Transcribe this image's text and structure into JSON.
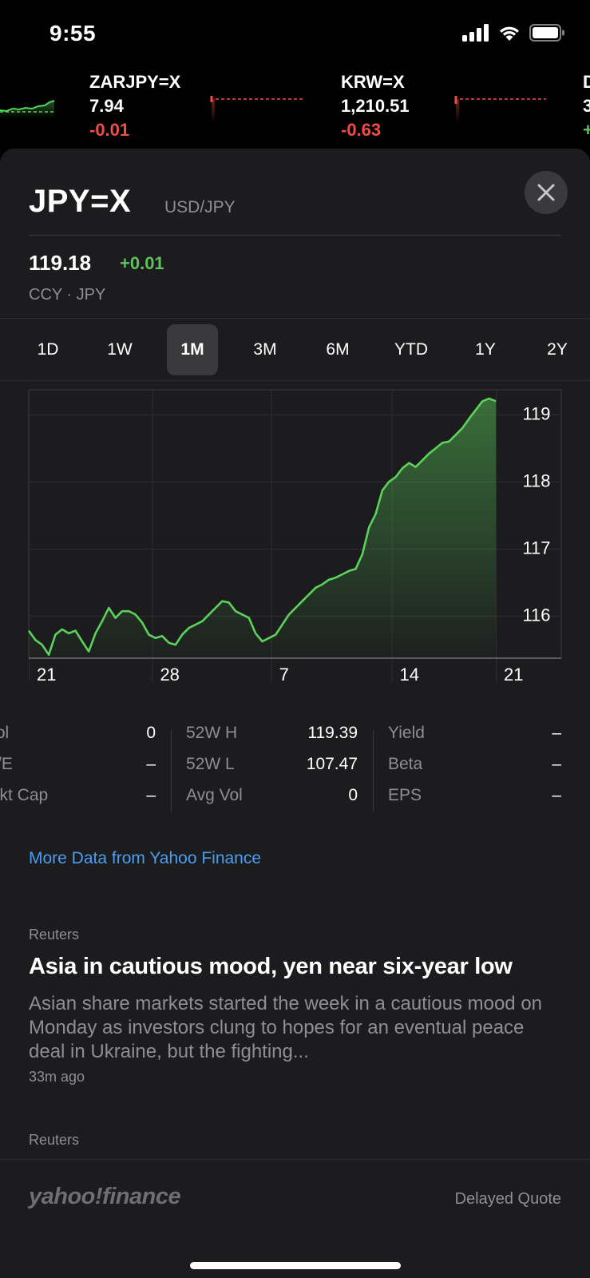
{
  "status_bar": {
    "time": "9:55"
  },
  "ticker": [
    {
      "symbol": "ZARJPY=X",
      "price": "7.94",
      "change": "-0.01"
    },
    {
      "symbol": "KRW=X",
      "price": "1,210.51",
      "change": "-0.63"
    }
  ],
  "header": {
    "symbol": "JPY=X",
    "pair": "USD/JPY"
  },
  "quote": {
    "price": "119.18",
    "change": "+0.01",
    "subline": "CCY · JPY"
  },
  "ranges": [
    "1D",
    "1W",
    "1M",
    "3M",
    "6M",
    "YTD",
    "1Y",
    "2Y"
  ],
  "active_range": "1M",
  "chart_data": {
    "type": "area",
    "x_tick_labels": [
      "21",
      "28",
      "7",
      "14",
      "21"
    ],
    "y_tick_labels": [
      "119",
      "118",
      "117",
      "116"
    ],
    "ylim": [
      115.35,
      119.35
    ],
    "values": [
      115.76,
      115.62,
      115.55,
      115.4,
      115.7,
      115.78,
      115.72,
      115.76,
      115.6,
      115.45,
      115.72,
      115.9,
      116.1,
      115.95,
      116.05,
      116.05,
      116.0,
      115.88,
      115.7,
      115.65,
      115.68,
      115.58,
      115.55,
      115.7,
      115.8,
      115.85,
      115.9,
      116.0,
      116.1,
      116.2,
      116.18,
      116.05,
      116.0,
      115.95,
      115.72,
      115.6,
      115.65,
      115.7,
      115.85,
      116.0,
      116.1,
      116.2,
      116.3,
      116.4,
      116.45,
      116.52,
      116.55,
      116.6,
      116.65,
      116.68,
      116.9,
      117.3,
      117.5,
      117.85,
      117.98,
      118.05,
      118.18,
      118.26,
      118.2,
      118.3,
      118.4,
      118.48,
      118.56,
      118.58,
      118.68,
      118.78,
      118.92,
      119.05,
      119.18,
      119.22,
      119.18
    ],
    "grid": true,
    "color": "#5bd35b"
  },
  "stats": {
    "col1": [
      {
        "label": "Vol",
        "value": "0"
      },
      {
        "label": "P/E",
        "value": "–"
      },
      {
        "label": "Mkt Cap",
        "value": "–"
      }
    ],
    "col2": [
      {
        "label": "52W H",
        "value": "119.39"
      },
      {
        "label": "52W L",
        "value": "107.47"
      },
      {
        "label": "Avg Vol",
        "value": "0"
      }
    ],
    "col3": [
      {
        "label": "Yield",
        "value": "–"
      },
      {
        "label": "Beta",
        "value": "–"
      },
      {
        "label": "EPS",
        "value": "–"
      }
    ]
  },
  "more_link": "More Data from Yahoo Finance",
  "news": [
    {
      "source": "Reuters",
      "headline": "Asia in cautious mood, yen near six-year low",
      "body": "Asian share markets started the week in a cautious mood on Monday as investors clung to hopes for an eventual peace deal in Ukraine, but the fighting...",
      "time": "33m ago"
    },
    {
      "source": "Reuters"
    }
  ],
  "footer": {
    "logo": "yahoo!finance",
    "delayed": "Delayed Quote"
  },
  "colors": {
    "up": "#5bc35b",
    "down": "#ef4d45",
    "link": "#4a9df0",
    "sheet_bg": "#1c1c1e"
  }
}
